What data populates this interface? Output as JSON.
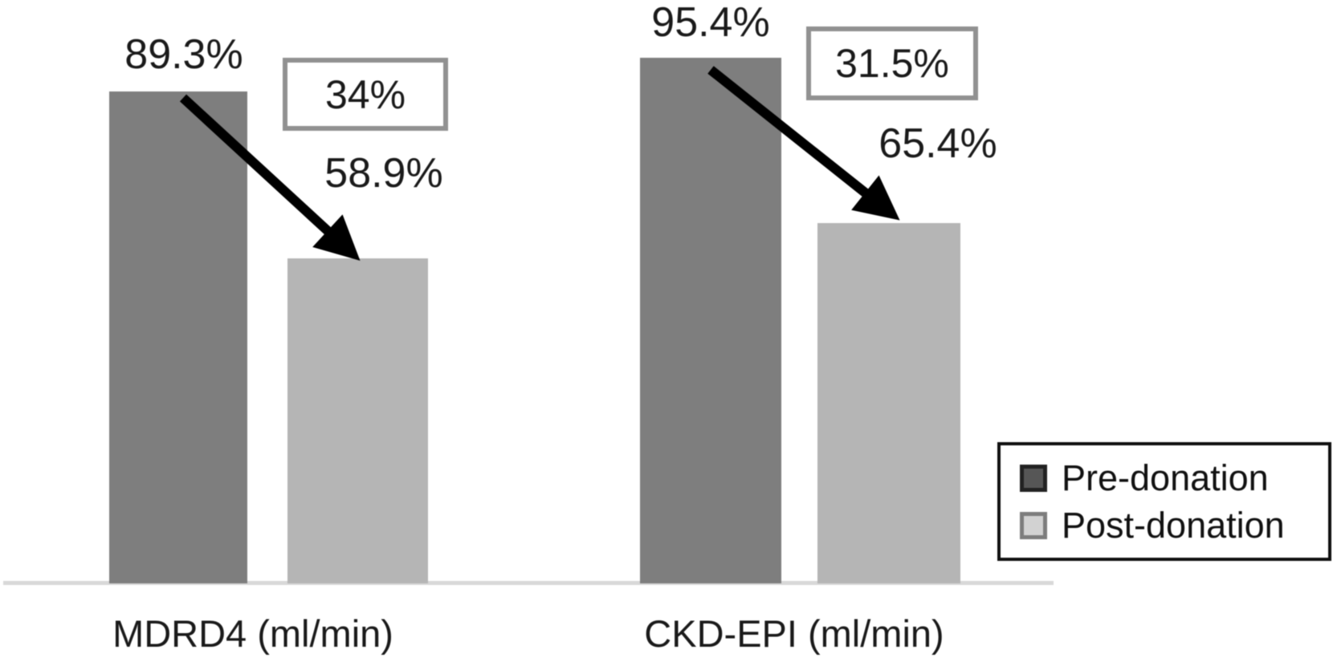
{
  "chart_data": {
    "type": "bar",
    "title": "",
    "categories": [
      "MDRD4 (ml/min)",
      "CKD-EPI (ml/min)"
    ],
    "series": [
      {
        "name": "Pre-donation",
        "values": [
          89.3,
          95.4
        ],
        "value_labels": [
          "89.3%",
          "95.4%"
        ],
        "color": "#7e7e7e",
        "swatch_fill": "#565656",
        "swatch_border": "#222222"
      },
      {
        "name": "Post-donation",
        "values": [
          58.9,
          65.4
        ],
        "value_labels": [
          "58.9%",
          "65.4%"
        ],
        "color": "#b5b5b5",
        "swatch_fill": "#d2d2d2",
        "swatch_border": "#7d7d7d"
      }
    ],
    "annotations": [
      {
        "text": "34%",
        "category": "MDRD4 (ml/min)"
      },
      {
        "text": "31.5%",
        "category": "CKD-EPI (ml/min)"
      }
    ],
    "legend": {
      "position": "bottom-right",
      "entries": [
        "Pre-donation",
        "Post-donation"
      ]
    },
    "unit": "%",
    "ylim": [
      0,
      100
    ],
    "grid": false,
    "baseline_color": "#d8d8d8",
    "annotation_border_color": "#919191",
    "arrow_color": "#000000",
    "text_color": "#1a1a1a"
  }
}
